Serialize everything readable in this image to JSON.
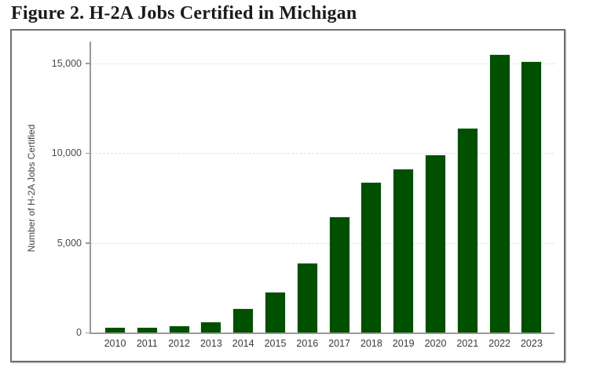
{
  "figure": {
    "title": "Figure 2. H-2A Jobs Certified in Michigan"
  },
  "chart_data": {
    "type": "bar",
    "title": "Figure 2. H-2A Jobs Certified in Michigan",
    "xlabel": "",
    "ylabel": "Number of H-2A Jobs Certified",
    "categories": [
      "2010",
      "2011",
      "2012",
      "2013",
      "2014",
      "2015",
      "2016",
      "2017",
      "2018",
      "2019",
      "2020",
      "2021",
      "2022",
      "2023"
    ],
    "values": [
      260,
      260,
      350,
      570,
      1310,
      2230,
      3850,
      6420,
      8340,
      9080,
      9870,
      11350,
      15460,
      15070
    ],
    "ylim": [
      0,
      16000
    ],
    "yticks": [
      0,
      5000,
      10000,
      15000
    ],
    "ytick_labels": [
      "0",
      "5,000",
      "10,000",
      "15,000"
    ],
    "grid": "horizontal dashed",
    "legend": "none",
    "bar_color": "#005000"
  }
}
